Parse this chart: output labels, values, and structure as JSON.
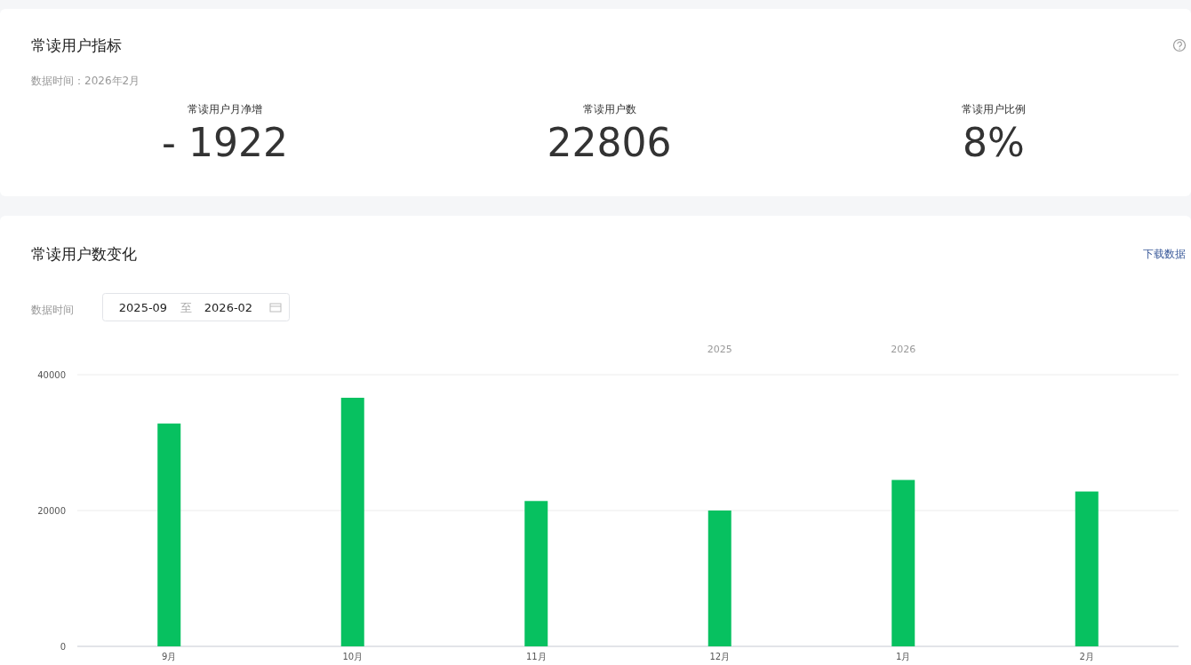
{
  "chart_data": [
    {
      "type": "other",
      "title": "常读用户指标",
      "subtitle": "数据时间：2026年2月",
      "categories": [
        "常读用户月净增",
        "常读用户数",
        "常读用户比例"
      ],
      "value_labels": [
        "- 1922",
        "22806",
        "8%"
      ]
    },
    {
      "type": "bar",
      "title": "常读用户数变化",
      "categories": [
        "9月",
        "10月",
        "11月",
        "12月",
        "1月",
        "2月"
      ],
      "values": [
        32800,
        36600,
        21400,
        20000,
        24500,
        22800
      ],
      "color": "#07c160",
      "ylim": [
        0,
        40000
      ],
      "yticks": [
        0,
        20000,
        40000
      ],
      "grid": "y",
      "annotations": [
        "下载数据",
        "数据时间",
        "2025-09",
        "至",
        "2026-02",
        "2025",
        "2026"
      ]
    }
  ]
}
